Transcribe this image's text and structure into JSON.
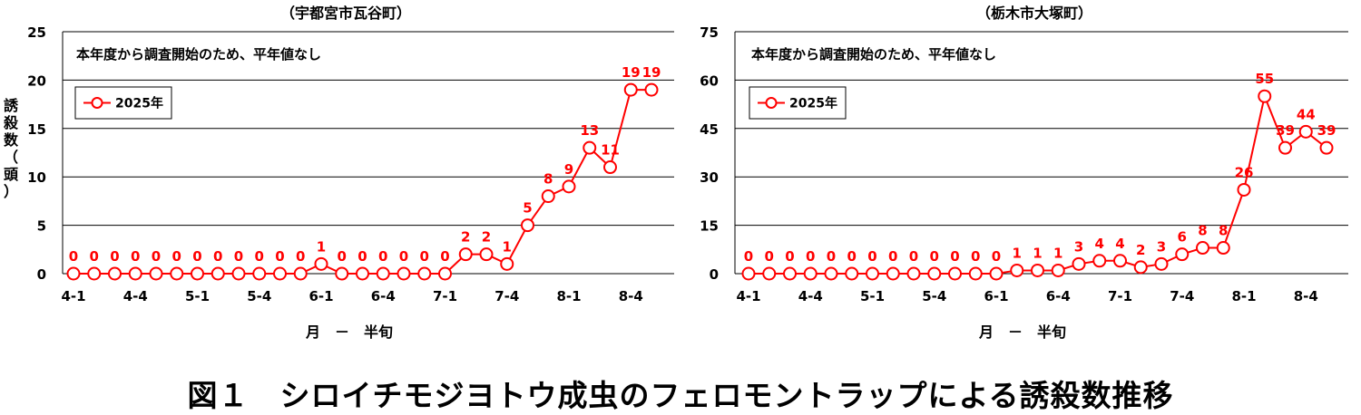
{
  "figure_caption": "図１　シロイチモジヨトウ成虫のフェロモントラップによる誘殺数推移",
  "colors": {
    "series": "#ff0000",
    "grid": "#000000",
    "axis": "#000000",
    "label": "#ff0000"
  },
  "chart_data": [
    {
      "type": "line",
      "title": "（宇都宮市瓦谷町）",
      "annotation": "本年度から調査開始のため、平年値なし",
      "ylabel": "誘殺数（頭）",
      "xlabel": "月　－　半旬",
      "ylim": [
        0,
        25
      ],
      "yticks": [
        0,
        5,
        10,
        15,
        20,
        25
      ],
      "x_tick_labels": [
        "4-1",
        "4-4",
        "5-1",
        "5-4",
        "6-1",
        "6-4",
        "7-1",
        "7-4",
        "8-1",
        "8-4"
      ],
      "legend_position": "upper-left",
      "series": [
        {
          "name": "2025年",
          "values": [
            0,
            0,
            0,
            0,
            0,
            0,
            0,
            0,
            0,
            0,
            0,
            0,
            1,
            0,
            0,
            0,
            0,
            0,
            0,
            2,
            2,
            1,
            5,
            8,
            9,
            13,
            11,
            19,
            19
          ]
        }
      ]
    },
    {
      "type": "line",
      "title": "（栃木市大塚町）",
      "annotation": "本年度から調査開始のため、平年値なし",
      "ylabel": "",
      "xlabel": "月　－　半旬",
      "ylim": [
        0,
        75
      ],
      "yticks": [
        0,
        15,
        30,
        45,
        60,
        75
      ],
      "x_tick_labels": [
        "4-1",
        "4-4",
        "5-1",
        "5-4",
        "6-1",
        "6-4",
        "7-1",
        "7-4",
        "8-1",
        "8-4"
      ],
      "legend_position": "upper-left",
      "series": [
        {
          "name": "2025年",
          "values": [
            0,
            0,
            0,
            0,
            0,
            0,
            0,
            0,
            0,
            0,
            0,
            0,
            0,
            1,
            1,
            1,
            3,
            4,
            4,
            2,
            3,
            6,
            8,
            8,
            26,
            55,
            39,
            44,
            39
          ]
        }
      ]
    }
  ]
}
